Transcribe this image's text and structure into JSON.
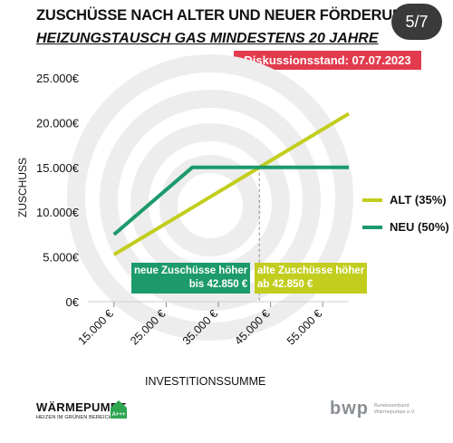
{
  "header": {
    "title": "ZUSCHÜSSE NACH ALTER UND NEUER FÖRDERUNG",
    "subtitle": "HEIZUNGSTAUSCH GAS MINDESTENS 20 JAHRE",
    "status": "Diskussionsstand: 07.07.2023",
    "page_counter": "5/7"
  },
  "chart_data": {
    "type": "line",
    "xlabel": "INVESTITIONSSUMME",
    "ylabel": "ZUSCHUSS",
    "x_ticks": [
      "15.000 €",
      "25.000 €",
      "35.000 €",
      "45.000 €",
      "55.000 €"
    ],
    "y_ticks": [
      "0€",
      "5.000€",
      "10.000€",
      "15.000€",
      "20.000€",
      "25.000€"
    ],
    "xlim": [
      10000,
      60000
    ],
    "ylim": [
      0,
      25000
    ],
    "grid": false,
    "legend_position": "right",
    "series": [
      {
        "name": "ALT (35%)",
        "color": "#c2cd1e",
        "points": [
          [
            15000,
            5250
          ],
          [
            60000,
            21000
          ]
        ]
      },
      {
        "name": "NEU (50%)",
        "color": "#1c9a6c",
        "points": [
          [
            15000,
            7500
          ],
          [
            30000,
            15000
          ],
          [
            60000,
            15000
          ]
        ]
      }
    ],
    "crossover_x": 42850,
    "annotations": [
      {
        "lines": [
          "neue Zuschüsse höher",
          "bis 42.850 €"
        ],
        "color": "#1c9a6c"
      },
      {
        "lines": [
          "alte Zuschüsse höher",
          "ab 42.850 €"
        ],
        "color": "#c2cd1e"
      }
    ]
  },
  "logos": {
    "left_title": "WÄRMEPUMPE",
    "left_subtitle": "HEIZEN IM GRÜNEN BEREICH",
    "left_badge": "A+++",
    "right_title": "bwp",
    "right_subtitle_1": "Bundesverband",
    "right_subtitle_2": "Wärmepumpe e.V."
  }
}
